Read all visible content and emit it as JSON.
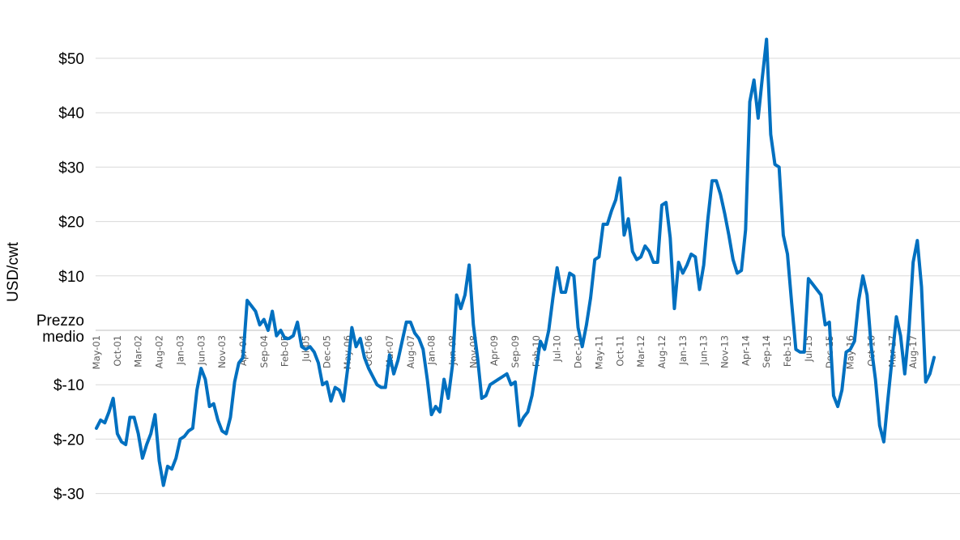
{
  "chart_data": {
    "type": "line",
    "title": "",
    "ylabel": "USD/cwt",
    "xlabel": "",
    "ylim": [
      -30,
      55
    ],
    "grid": true,
    "legend": "none",
    "color": "#0070c0",
    "y_ticks": [
      {
        "value": 50,
        "label": "$50"
      },
      {
        "value": 40,
        "label": "$40"
      },
      {
        "value": 30,
        "label": "$30"
      },
      {
        "value": 20,
        "label": "$20"
      },
      {
        "value": 10,
        "label": "$10"
      },
      {
        "value": 0,
        "label": "Prezzo medio"
      },
      {
        "value": -10,
        "label": "$-10"
      },
      {
        "value": -20,
        "label": "$-20"
      },
      {
        "value": -30,
        "label": "$-30"
      }
    ],
    "x_tick_labels": [
      "May-01",
      "Oct-01",
      "Mar-02",
      "Aug-02",
      "Jan-03",
      "Jun-03",
      "Nov-03",
      "Apr-04",
      "Sep-04",
      "Feb-05",
      "Jul-05",
      "Dec-05",
      "May-06",
      "Oct-06",
      "Mar-07",
      "Aug-07",
      "Jan-08",
      "Jun-08",
      "Nov-08",
      "Apr-09",
      "Sep-09",
      "Feb-10",
      "Jul-10",
      "Dec-10",
      "May-11",
      "Oct-11",
      "Mar-12",
      "Aug-12",
      "Jan-13",
      "Jun-13",
      "Nov-13",
      "Apr-14",
      "Sep-14",
      "Feb-15",
      "Jul-15",
      "Dec-15",
      "May-16",
      "Oct-16",
      "Mar-17",
      "Aug-17"
    ],
    "start_month": "May-01",
    "series": [
      {
        "name": "",
        "values": [
          -18,
          -16.5,
          -17,
          -15,
          -12.5,
          -19,
          -20.5,
          -21,
          -16,
          -16,
          -19,
          -23.5,
          -21,
          -19,
          -15.5,
          -24,
          -28.5,
          -25,
          -25.5,
          -23.5,
          -20,
          -19.5,
          -18.5,
          -18,
          -11,
          -7,
          -9,
          -14,
          -13.5,
          -16.5,
          -18.5,
          -19,
          -16,
          -9.5,
          -6,
          -5,
          5.5,
          4.5,
          3.5,
          1,
          2,
          0,
          3.5,
          -1,
          0,
          -1.5,
          -1.5,
          -1,
          1.5,
          -3,
          -3.5,
          -3,
          -4,
          -6,
          -10,
          -9.5,
          -13,
          -10.5,
          -11,
          -13,
          -7,
          0.5,
          -3,
          -1.5,
          -5,
          -7,
          -8.5,
          -10,
          -10.5,
          -10.5,
          -4.5,
          -8,
          -5.5,
          -2,
          1.5,
          1.5,
          -0.5,
          -1.5,
          -3.5,
          -9,
          -15.5,
          -14,
          -15,
          -9,
          -12.5,
          -6.5,
          6.5,
          4,
          6.5,
          12,
          1,
          -5,
          -12.5,
          -12,
          -10,
          -9.5,
          -9,
          -8.5,
          -8,
          -10,
          -9.5,
          -17.5,
          -16,
          -15,
          -12,
          -7,
          -2,
          -3.5,
          0,
          6,
          11.5,
          7,
          7,
          10.5,
          10,
          0.5,
          -3,
          1,
          6,
          13,
          13.5,
          19.5,
          19.5,
          22,
          24,
          28,
          17.5,
          20.5,
          14.5,
          13,
          13.5,
          15.5,
          14.5,
          12.5,
          12.5,
          23,
          23.5,
          17,
          4,
          12.5,
          10.5,
          12,
          14,
          13.5,
          7.5,
          12,
          20.5,
          27.5,
          27.5,
          25,
          21.5,
          17.5,
          13,
          10.5,
          11,
          18.5,
          42,
          46,
          39,
          46.5,
          53.5,
          36,
          30.5,
          30,
          17.5,
          14,
          5,
          -3.5,
          -4,
          -4,
          9.5,
          8.5,
          7.5,
          6.5,
          1,
          1.5,
          -12,
          -14,
          -11,
          -4,
          -3.5,
          -2,
          5.5,
          10,
          6.5,
          -3,
          -9,
          -17.5,
          -20.5,
          -12.5,
          -5,
          2.5,
          -1,
          -8,
          0,
          12.5,
          16.5,
          8,
          -9.5,
          -8,
          -5
        ]
      }
    ]
  }
}
